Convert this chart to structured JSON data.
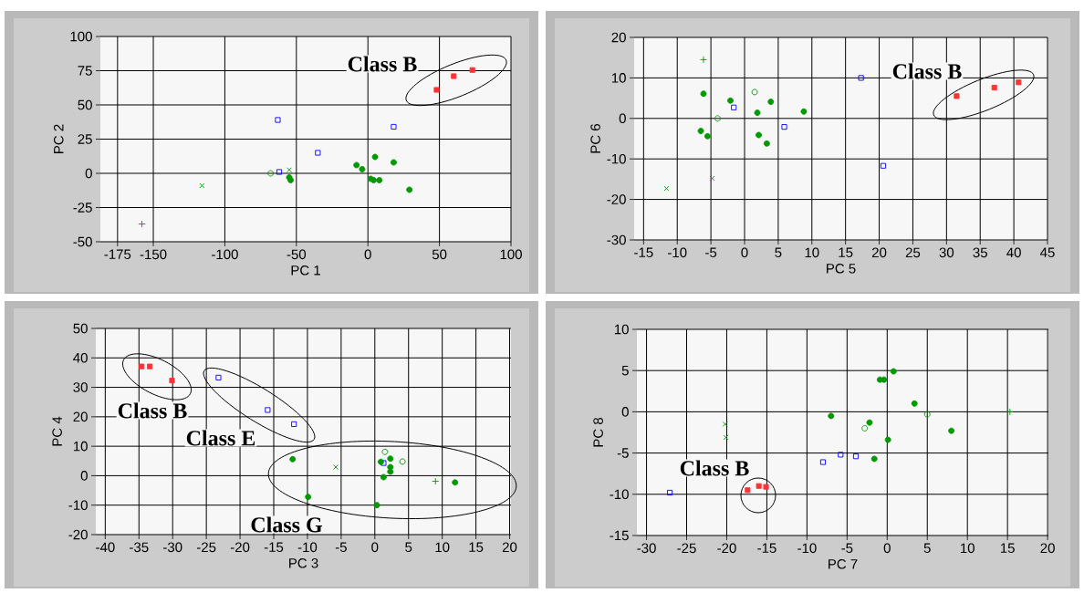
{
  "chart_data": [
    {
      "type": "scatter",
      "xlabel": "PC 1",
      "ylabel": "PC 2",
      "xlim": [
        -187,
        100
      ],
      "ylim": [
        -50,
        100
      ],
      "xticks": [
        -175,
        -150,
        -100,
        -50,
        0,
        50,
        100
      ],
      "yticks": [
        -50,
        -25,
        0,
        25,
        50,
        75,
        100
      ],
      "grid": true,
      "series": [
        {
          "color": "#ff3333",
          "marker": "square",
          "x": [
            48,
            60,
            73
          ],
          "values": [
            61,
            71,
            75.5
          ]
        },
        {
          "color": "#0000ff",
          "marker": "square open",
          "x": [
            -63,
            18,
            -35,
            -62
          ],
          "values": [
            39,
            34,
            15,
            1
          ]
        },
        {
          "color": "#009900",
          "marker": "circle",
          "x": [
            -8,
            -4,
            5,
            18,
            2,
            4,
            8,
            29,
            -54,
            -55
          ],
          "values": [
            6,
            3,
            12,
            8,
            -4,
            -5,
            -5,
            -12,
            -5,
            -3
          ]
        },
        {
          "color": "#009900",
          "marker": "circle open",
          "x": [
            -68
          ],
          "values": [
            0
          ]
        },
        {
          "color": "#009900",
          "marker": "cross",
          "x": [
            -116,
            -55
          ],
          "values": [
            -9,
            2.5
          ]
        },
        {
          "color": "#009900",
          "marker": "plus",
          "x": [
            -158
          ],
          "values": [
            -37
          ]
        }
      ],
      "annotations": [
        "Class B"
      ]
    },
    {
      "type": "scatter",
      "xlabel": "PC 5",
      "ylabel": "PC 6",
      "xlim": [
        -16.4,
        45
      ],
      "ylim": [
        -30,
        20
      ],
      "xticks": [
        -15,
        -10,
        -5,
        0,
        5,
        10,
        15,
        20,
        25,
        30,
        35,
        40,
        45
      ],
      "yticks": [
        -30,
        -20,
        -10,
        0,
        10,
        20
      ],
      "grid": true,
      "series": [
        {
          "color": "#ff3333",
          "marker": "square",
          "x": [
            31.5,
            37.1,
            40.7
          ],
          "values": [
            5.5,
            7.6,
            8.9
          ]
        },
        {
          "color": "#0000ff",
          "marker": "square open",
          "x": [
            17.3,
            -1.6,
            5.9,
            20.6
          ],
          "values": [
            10,
            2.7,
            -2.1,
            -11.7
          ]
        },
        {
          "color": "#009900",
          "marker": "circle",
          "x": [
            -6.1,
            -2.1,
            3.9,
            8.8,
            1.9,
            -6.5,
            -5.5,
            2.1,
            3.3
          ],
          "values": [
            6.1,
            4.4,
            4.1,
            1.7,
            1.4,
            -3.1,
            -4.4,
            -4.1,
            -6.2
          ]
        },
        {
          "color": "#009900",
          "marker": "circle open",
          "x": [
            1.5,
            -4
          ],
          "values": [
            6.5,
            0
          ]
        },
        {
          "color": "#009900",
          "marker": "cross",
          "x": [
            -11.6,
            -4.8
          ],
          "values": [
            -17.3,
            -14.8
          ]
        },
        {
          "color": "#009900",
          "marker": "plus",
          "x": [
            -6.1
          ],
          "values": [
            14.5
          ]
        }
      ],
      "annotations": [
        "Class B"
      ]
    },
    {
      "type": "scatter",
      "xlabel": "PC 3",
      "ylabel": "PC 4",
      "xlim": [
        -41.4,
        20.2
      ],
      "ylim": [
        -20,
        50
      ],
      "xticks": [
        -40,
        -35,
        -30,
        -25,
        -20,
        -15,
        -10,
        -5,
        0,
        5,
        10,
        15,
        20
      ],
      "yticks": [
        -20,
        -10,
        0,
        10,
        20,
        30,
        40,
        50
      ],
      "grid": true,
      "series": [
        {
          "color": "#ff3333",
          "marker": "square",
          "x": [
            -34.6,
            -33.4,
            -30.1
          ],
          "values": [
            37.1,
            37.1,
            32.3
          ]
        },
        {
          "color": "#0000ff",
          "marker": "square open",
          "x": [
            -23.2,
            -15.9,
            -12,
            1.3
          ],
          "values": [
            33.3,
            22.3,
            17.5,
            4.3
          ]
        },
        {
          "color": "#009900",
          "marker": "circle",
          "x": [
            -12.2,
            -9.9,
            0.3,
            1.3,
            2.3,
            2.3,
            2.3,
            11.9,
            0.9
          ],
          "values": [
            5.6,
            -7.2,
            -10,
            -0.5,
            5.8,
            2.9,
            1.4,
            -2.3,
            4.7
          ]
        },
        {
          "color": "#009900",
          "marker": "circle open",
          "x": [
            1.5,
            4.1
          ],
          "values": [
            8.1,
            4.8
          ]
        },
        {
          "color": "#009900",
          "marker": "cross",
          "x": [
            -5.8
          ],
          "values": [
            2.9
          ]
        },
        {
          "color": "#009900",
          "marker": "plus",
          "x": [
            9
          ],
          "values": [
            -1.9
          ]
        }
      ],
      "annotations": [
        "Class B",
        "Class E",
        "Class G"
      ]
    },
    {
      "type": "scatter",
      "xlabel": "PC 7",
      "ylabel": "PC 8",
      "xlim": [
        -31.2,
        20.1
      ],
      "ylim": [
        -15,
        10
      ],
      "xticks": [
        -30,
        -25,
        -20,
        -15,
        -10,
        -5,
        0,
        5,
        10,
        15,
        20
      ],
      "yticks": [
        -15,
        -10,
        -5,
        0,
        5,
        10
      ],
      "grid": true,
      "series": [
        {
          "color": "#ff3333",
          "marker": "square",
          "x": [
            -17.4,
            -16,
            -15.1
          ],
          "values": [
            -9.5,
            -9,
            -9.1
          ]
        },
        {
          "color": "#0000ff",
          "marker": "square open",
          "x": [
            -27.1,
            -8,
            -5.8,
            -3.9
          ],
          "values": [
            -9.8,
            -6.1,
            -5.2,
            -5.4
          ]
        },
        {
          "color": "#009900",
          "marker": "circle",
          "x": [
            0.8,
            -0.9,
            -0.4,
            3.4,
            -7,
            -2.2,
            0.1,
            8,
            -1.6
          ],
          "values": [
            4.9,
            3.9,
            3.9,
            1,
            -0.5,
            -1.3,
            -3.4,
            -2.3,
            -5.7
          ]
        },
        {
          "color": "#009900",
          "marker": "circle open",
          "x": [
            -2.8,
            5
          ],
          "values": [
            -2,
            -0.3
          ]
        },
        {
          "color": "#009900",
          "marker": "cross",
          "x": [
            -20.2,
            -20.1
          ],
          "values": [
            -1.5,
            -3.1
          ]
        },
        {
          "color": "#009900",
          "marker": "plus",
          "x": [
            15.3
          ],
          "values": [
            0
          ]
        }
      ],
      "annotations": [
        "Class B"
      ]
    }
  ]
}
